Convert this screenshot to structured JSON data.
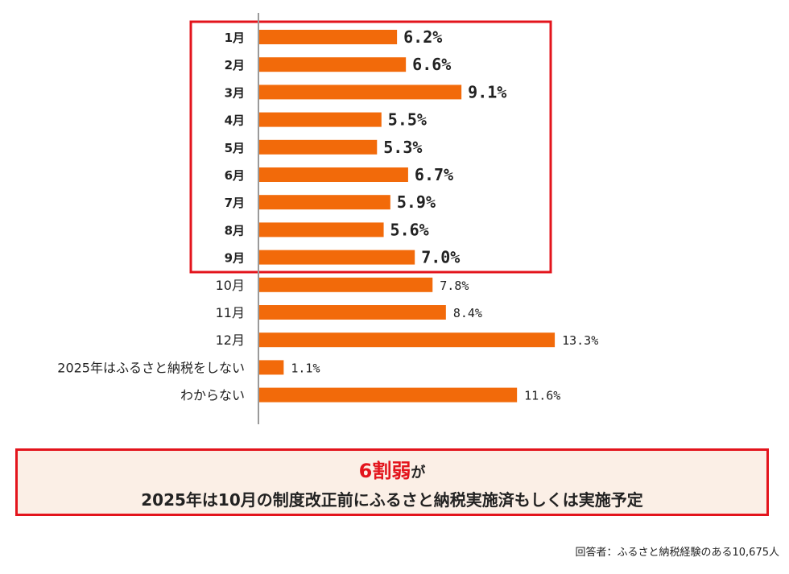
{
  "chart_data": {
    "type": "bar",
    "orientation": "horizontal",
    "categories": [
      "1月",
      "2月",
      "3月",
      "4月",
      "5月",
      "6月",
      "7月",
      "8月",
      "9月",
      "10月",
      "11月",
      "12月",
      "2025年はふるさと納税をしない",
      "わからない"
    ],
    "values": [
      6.2,
      6.6,
      9.1,
      5.5,
      5.3,
      6.7,
      5.9,
      5.6,
      7.0,
      7.8,
      8.4,
      13.3,
      1.1,
      11.6
    ],
    "value_labels": [
      "6.2%",
      "6.6%",
      "9.1%",
      "5.5%",
      "5.3%",
      "6.7%",
      "5.9%",
      "5.6%",
      "7.0%",
      "7.8%",
      "8.4%",
      "13.3%",
      "1.1%",
      "11.6%"
    ],
    "highlighted_range": [
      0,
      8
    ],
    "bar_color": "#f26a0a",
    "highlight_border_color": "#e3141c",
    "title": "",
    "xlabel": "",
    "ylabel": "",
    "grid": false,
    "legend": "none"
  },
  "summary": {
    "highlight": "6割弱",
    "suffix": "が",
    "line2": "2025年は10月の制度改正前にふるさと納税実施済もしくは実施予定"
  },
  "footnote": "回答者：ふるさと納税経験のある10,675人",
  "colors": {
    "accent_red": "#e3141c",
    "bar": "#f26a0a",
    "summary_bg": "#fbefe6"
  }
}
